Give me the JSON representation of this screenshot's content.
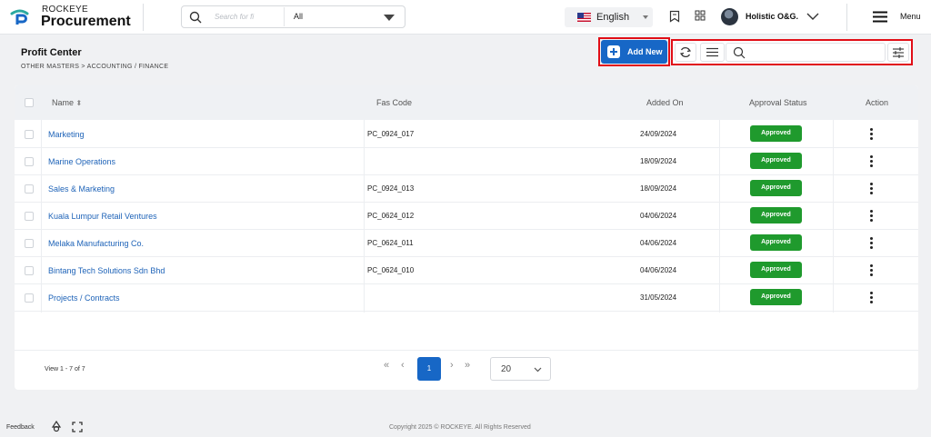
{
  "brand": {
    "top": "ROCKEYE",
    "main": "Procurement"
  },
  "search": {
    "placeholder": "Search for fi",
    "scope": "All"
  },
  "language": "English",
  "user": {
    "name": "Holistic O&G."
  },
  "menu_label": "Menu",
  "page": {
    "title": "Profit Center",
    "breadcrumb": "OTHER MASTERS >  ACCOUNTING / FINANCE"
  },
  "toolbar": {
    "add_label": "Add New",
    "search_placeholder": ""
  },
  "table": {
    "columns": {
      "name": "Name",
      "fas": "Fas Code",
      "added": "Added On",
      "status": "Approval Status",
      "action": "Action"
    },
    "rows": [
      {
        "name": "Marketing",
        "fas": "PC_0924_017",
        "date": "24/09/2024",
        "status": "Approved"
      },
      {
        "name": "Marine Operations",
        "fas": "",
        "date": "18/09/2024",
        "status": "Approved"
      },
      {
        "name": "Sales & Marketing",
        "fas": "PC_0924_013",
        "date": "18/09/2024",
        "status": "Approved"
      },
      {
        "name": "Kuala Lumpur Retail Ventures",
        "fas": "PC_0624_012",
        "date": "04/06/2024",
        "status": "Approved"
      },
      {
        "name": "Melaka Manufacturing Co.",
        "fas": "PC_0624_011",
        "date": "04/06/2024",
        "status": "Approved"
      },
      {
        "name": "Bintang Tech Solutions Sdn Bhd",
        "fas": "PC_0624_010",
        "date": "04/06/2024",
        "status": "Approved"
      },
      {
        "name": "Projects / Contracts",
        "fas": "",
        "date": "31/05/2024",
        "status": "Approved"
      }
    ]
  },
  "pagination": {
    "view": "View 1 - 7 of 7",
    "current": "1",
    "page_size": "20"
  },
  "footer": {
    "feedback": "Feedback",
    "copyright": "Copyright 2025 © ROCKEYE. All Rights Reserved"
  },
  "colors": {
    "accent": "#1767c6",
    "approved": "#1f9a2d",
    "highlight": "#e10e17"
  }
}
